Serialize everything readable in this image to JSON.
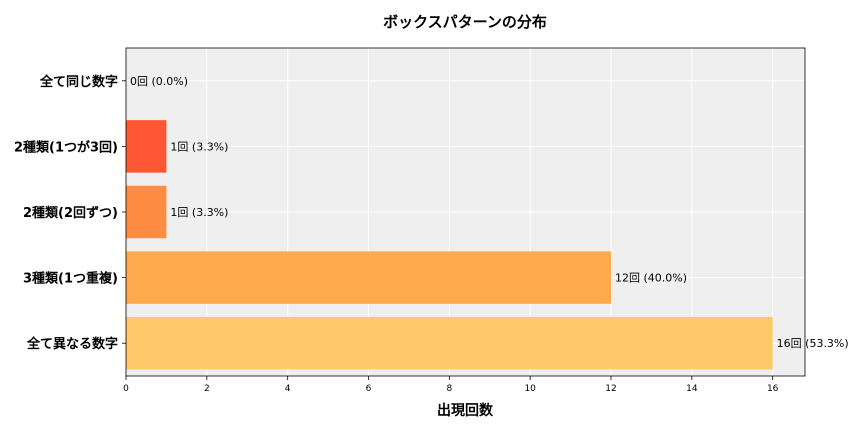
{
  "chart_data": {
    "type": "bar",
    "orientation": "horizontal",
    "title": "ボックスパターンの分布",
    "xlabel": "出現回数",
    "ylabel": "",
    "categories": [
      "全て同じ数字",
      "2種類(1つが3回)",
      "2種類(2回ずつ)",
      "3種類(1つ重複)",
      "全て異なる数字"
    ],
    "values": [
      0,
      1,
      1,
      12,
      16
    ],
    "data_labels": [
      "0回 (0.0%)",
      "1回 (3.3%)",
      "1回 (3.3%)",
      "12回 (40.0%)",
      "16回 (53.3%)"
    ],
    "colors": [
      "#FFD27A",
      "#FF5733",
      "#FF8C42",
      "#FFAA4C",
      "#FFC96B"
    ],
    "xlim": [
      0,
      16.8
    ],
    "xticks": [
      0,
      2,
      4,
      6,
      8,
      10,
      12,
      14,
      16
    ],
    "grid": true,
    "background": "#EFEFEF"
  }
}
